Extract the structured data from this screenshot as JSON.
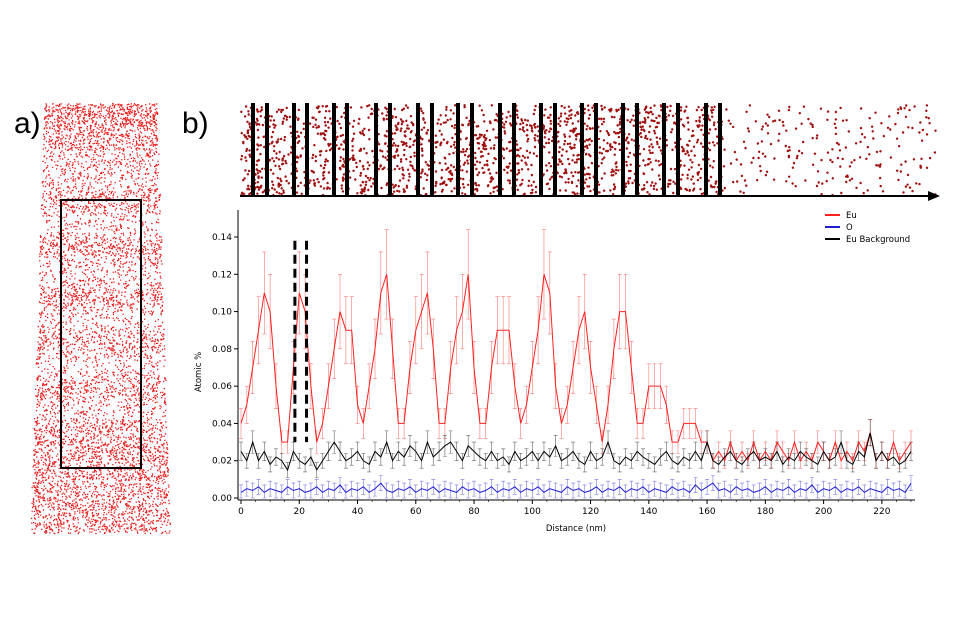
{
  "figure": {
    "panel_a_label": "a)",
    "panel_b_label": "b)"
  },
  "chart_data": {
    "type": "line",
    "title": "",
    "xlabel": "Distance (nm)",
    "ylabel": "Atomic %",
    "xlim": [
      0,
      230
    ],
    "ylim": [
      0,
      0.15
    ],
    "xticks": [
      "0",
      "20",
      "40",
      "60",
      "80",
      "100",
      "120",
      "140",
      "160",
      "180",
      "200",
      "220"
    ],
    "yticks": [
      "0.00",
      "0.02",
      "0.04",
      "0.06",
      "0.08",
      "0.10",
      "0.12",
      "0.14"
    ],
    "grid": false,
    "legend_position": "top-right",
    "error_bars": true,
    "highlight_region_nm": [
      18.5,
      22.5
    ],
    "x_step_nm": 2,
    "series": [
      {
        "name": "Eu",
        "color": "#ff2020",
        "values": [
          0.04,
          0.05,
          0.07,
          0.09,
          0.11,
          0.1,
          0.06,
          0.03,
          0.03,
          0.07,
          0.11,
          0.1,
          0.06,
          0.03,
          0.04,
          0.06,
          0.08,
          0.1,
          0.09,
          0.09,
          0.05,
          0.04,
          0.06,
          0.08,
          0.11,
          0.12,
          0.08,
          0.04,
          0.04,
          0.07,
          0.09,
          0.1,
          0.11,
          0.08,
          0.04,
          0.04,
          0.07,
          0.09,
          0.1,
          0.12,
          0.07,
          0.04,
          0.04,
          0.07,
          0.09,
          0.09,
          0.09,
          0.06,
          0.04,
          0.05,
          0.07,
          0.09,
          0.12,
          0.11,
          0.06,
          0.04,
          0.05,
          0.07,
          0.09,
          0.1,
          0.07,
          0.05,
          0.03,
          0.05,
          0.08,
          0.1,
          0.1,
          0.07,
          0.04,
          0.04,
          0.06,
          0.06,
          0.06,
          0.05,
          0.03,
          0.03,
          0.04,
          0.04,
          0.04,
          0.03,
          0.03,
          0.02,
          0.025,
          0.02,
          0.03,
          0.02,
          0.025,
          0.02,
          0.03,
          0.02,
          0.025,
          0.02,
          0.03,
          0.025,
          0.02,
          0.03,
          0.02,
          0.025,
          0.02,
          0.03,
          0.025,
          0.02,
          0.03,
          0.02,
          0.025,
          0.02,
          0.03,
          0.025,
          0.035,
          0.02,
          0.025,
          0.02,
          0.03,
          0.02,
          0.025,
          0.03
        ]
      },
      {
        "name": "O",
        "color": "#2020d0",
        "values": [
          0.003,
          0.005,
          0.004,
          0.006,
          0.003,
          0.005,
          0.004,
          0.003,
          0.006,
          0.004,
          0.005,
          0.003,
          0.004,
          0.006,
          0.003,
          0.005,
          0.004,
          0.007,
          0.003,
          0.005,
          0.004,
          0.006,
          0.003,
          0.005,
          0.008,
          0.004,
          0.003,
          0.005,
          0.004,
          0.006,
          0.003,
          0.005,
          0.004,
          0.006,
          0.003,
          0.005,
          0.004,
          0.003,
          0.006,
          0.004,
          0.005,
          0.003,
          0.004,
          0.006,
          0.003,
          0.005,
          0.004,
          0.006,
          0.003,
          0.005,
          0.004,
          0.006,
          0.003,
          0.005,
          0.004,
          0.003,
          0.006,
          0.004,
          0.005,
          0.003,
          0.004,
          0.006,
          0.003,
          0.005,
          0.004,
          0.006,
          0.003,
          0.005,
          0.004,
          0.006,
          0.003,
          0.005,
          0.004,
          0.003,
          0.006,
          0.004,
          0.005,
          0.003,
          0.007,
          0.004,
          0.006,
          0.008,
          0.004,
          0.005,
          0.003,
          0.006,
          0.004,
          0.005,
          0.003,
          0.004,
          0.006,
          0.003,
          0.005,
          0.004,
          0.006,
          0.003,
          0.005,
          0.004,
          0.007,
          0.003,
          0.005,
          0.004,
          0.006,
          0.003,
          0.005,
          0.004,
          0.006,
          0.003,
          0.005,
          0.004,
          0.003,
          0.006,
          0.004,
          0.005,
          0.003,
          0.008
        ]
      },
      {
        "name": "Eu Background",
        "color": "#000000",
        "values": [
          0.025,
          0.02,
          0.03,
          0.02,
          0.025,
          0.018,
          0.022,
          0.02,
          0.015,
          0.025,
          0.02,
          0.018,
          0.022,
          0.015,
          0.02,
          0.025,
          0.03,
          0.025,
          0.02,
          0.022,
          0.025,
          0.02,
          0.018,
          0.025,
          0.022,
          0.03,
          0.02,
          0.025,
          0.022,
          0.028,
          0.025,
          0.02,
          0.03,
          0.022,
          0.025,
          0.028,
          0.03,
          0.025,
          0.02,
          0.028,
          0.025,
          0.022,
          0.02,
          0.025,
          0.02,
          0.022,
          0.018,
          0.025,
          0.02,
          0.022,
          0.025,
          0.02,
          0.025,
          0.022,
          0.028,
          0.02,
          0.022,
          0.025,
          0.02,
          0.018,
          0.025,
          0.02,
          0.022,
          0.03,
          0.02,
          0.018,
          0.022,
          0.02,
          0.025,
          0.022,
          0.02,
          0.018,
          0.022,
          0.025,
          0.02,
          0.018,
          0.022,
          0.02,
          0.025,
          0.02,
          0.03,
          0.02,
          0.018,
          0.022,
          0.025,
          0.02,
          0.018,
          0.022,
          0.025,
          0.02,
          0.022,
          0.02,
          0.025,
          0.018,
          0.022,
          0.02,
          0.025,
          0.022,
          0.02,
          0.018,
          0.025,
          0.02,
          0.022,
          0.03,
          0.02,
          0.018,
          0.025,
          0.022,
          0.035,
          0.02,
          0.025,
          0.02,
          0.022,
          0.018,
          0.02,
          0.025
        ]
      }
    ]
  }
}
